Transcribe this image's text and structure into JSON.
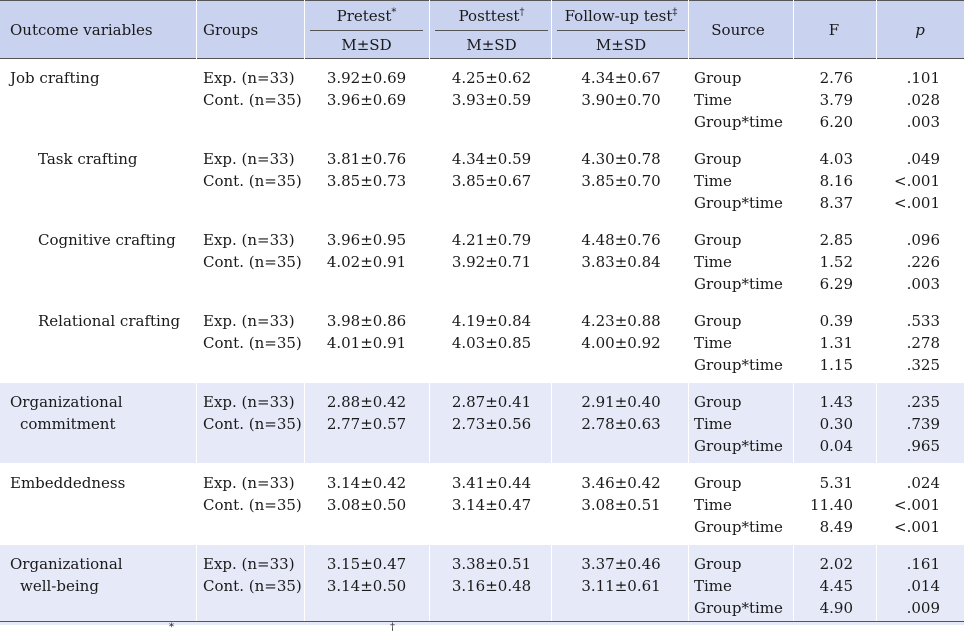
{
  "header": {
    "outcome": "Outcome variables",
    "groups": "Groups",
    "periods": [
      {
        "name": "Pretest",
        "mark": "*",
        "sub": "M±SD"
      },
      {
        "name": "Posttest",
        "mark": "†",
        "sub": "M±SD"
      },
      {
        "name": "Follow-up test",
        "mark": "‡",
        "sub": "M±SD"
      }
    ],
    "source": "Source",
    "F": "F",
    "p": "p"
  },
  "rows": [
    {
      "outcome": [
        "Job crafting"
      ],
      "indent": false,
      "shaded": false,
      "groups": [
        "Exp. (n=33)",
        "Cont. (n=35)"
      ],
      "pre": [
        "3.92±0.69",
        "3.96±0.69"
      ],
      "post": [
        "4.25±0.62",
        "3.93±0.59"
      ],
      "fu": [
        "4.34±0.67",
        "3.90±0.70"
      ],
      "sources": [
        "Group",
        "Time",
        "Group*time"
      ],
      "F": [
        "2.76",
        "3.79",
        "6.20"
      ],
      "p": [
        ".101",
        ".028",
        ".003"
      ]
    },
    {
      "outcome": [
        "Task crafting"
      ],
      "indent": true,
      "shaded": false,
      "groups": [
        "Exp. (n=33)",
        "Cont. (n=35)"
      ],
      "pre": [
        "3.81±0.76",
        "3.85±0.73"
      ],
      "post": [
        "4.34±0.59",
        "3.85±0.67"
      ],
      "fu": [
        "4.30±0.78",
        "3.85±0.70"
      ],
      "sources": [
        "Group",
        "Time",
        "Group*time"
      ],
      "F": [
        "4.03",
        "8.16",
        "8.37"
      ],
      "p": [
        ".049",
        "<.001",
        "<.001"
      ]
    },
    {
      "outcome": [
        "Cognitive crafting"
      ],
      "indent": true,
      "shaded": false,
      "groups": [
        "Exp. (n=33)",
        "Cont. (n=35)"
      ],
      "pre": [
        "3.96±0.95",
        "4.02±0.91"
      ],
      "post": [
        "4.21±0.79",
        "3.92±0.71"
      ],
      "fu": [
        "4.48±0.76",
        "3.83±0.84"
      ],
      "sources": [
        "Group",
        "Time",
        "Group*time"
      ],
      "F": [
        "2.85",
        "1.52",
        "6.29"
      ],
      "p": [
        ".096",
        ".226",
        ".003"
      ]
    },
    {
      "outcome": [
        "Relational crafting"
      ],
      "indent": true,
      "shaded": false,
      "groups": [
        "Exp. (n=33)",
        "Cont. (n=35)"
      ],
      "pre": [
        "3.98±0.86",
        "4.01±0.91"
      ],
      "post": [
        "4.19±0.84",
        "4.03±0.85"
      ],
      "fu": [
        "4.23±0.88",
        "4.00±0.92"
      ],
      "sources": [
        "Group",
        "Time",
        "Group*time"
      ],
      "F": [
        "0.39",
        "1.31",
        "1.15"
      ],
      "p": [
        ".533",
        ".278",
        ".325"
      ]
    },
    {
      "outcome": [
        "Organizational",
        "commitment"
      ],
      "indent": false,
      "shaded": true,
      "groups": [
        "Exp. (n=33)",
        "Cont. (n=35)"
      ],
      "pre": [
        "2.88±0.42",
        "2.77±0.57"
      ],
      "post": [
        "2.87±0.41",
        "2.73±0.56"
      ],
      "fu": [
        "2.91±0.40",
        "2.78±0.63"
      ],
      "sources": [
        "Group",
        "Time",
        "Group*time"
      ],
      "F": [
        "1.43",
        "0.30",
        "0.04"
      ],
      "p": [
        ".235",
        ".739",
        ".965"
      ]
    },
    {
      "outcome": [
        "Embeddedness"
      ],
      "indent": false,
      "shaded": false,
      "groups": [
        "Exp. (n=33)",
        "Cont. (n=35)"
      ],
      "pre": [
        "3.14±0.42",
        "3.08±0.50"
      ],
      "post": [
        "3.41±0.44",
        "3.14±0.47"
      ],
      "fu": [
        "3.46±0.42",
        "3.08±0.51"
      ],
      "sources": [
        "Group",
        "Time",
        "Group*time"
      ],
      "F": [
        "5.31",
        "11.40",
        "8.49"
      ],
      "p": [
        ".024",
        "<.001",
        "<.001"
      ]
    },
    {
      "outcome": [
        "Organizational",
        "well-being"
      ],
      "indent": false,
      "shaded": true,
      "groups": [
        "Exp. (n=33)",
        "Cont. (n=35)"
      ],
      "pre": [
        "3.15±0.47",
        "3.14±0.50"
      ],
      "post": [
        "3.38±0.51",
        "3.16±0.48"
      ],
      "fu": [
        "3.37±0.46",
        "3.11±0.61"
      ],
      "sources": [
        "Group",
        "Time",
        "Group*time"
      ],
      "F": [
        "2.02",
        "4.45",
        "4.90"
      ],
      "p": [
        ".161",
        ".014",
        ".009"
      ]
    }
  ],
  "footnote_marks": [
    "*",
    "†"
  ],
  "colors": {
    "header_bg": "#c9d3f0",
    "shaded_row_bg": "#e6eaf8",
    "rule": "#555555"
  }
}
